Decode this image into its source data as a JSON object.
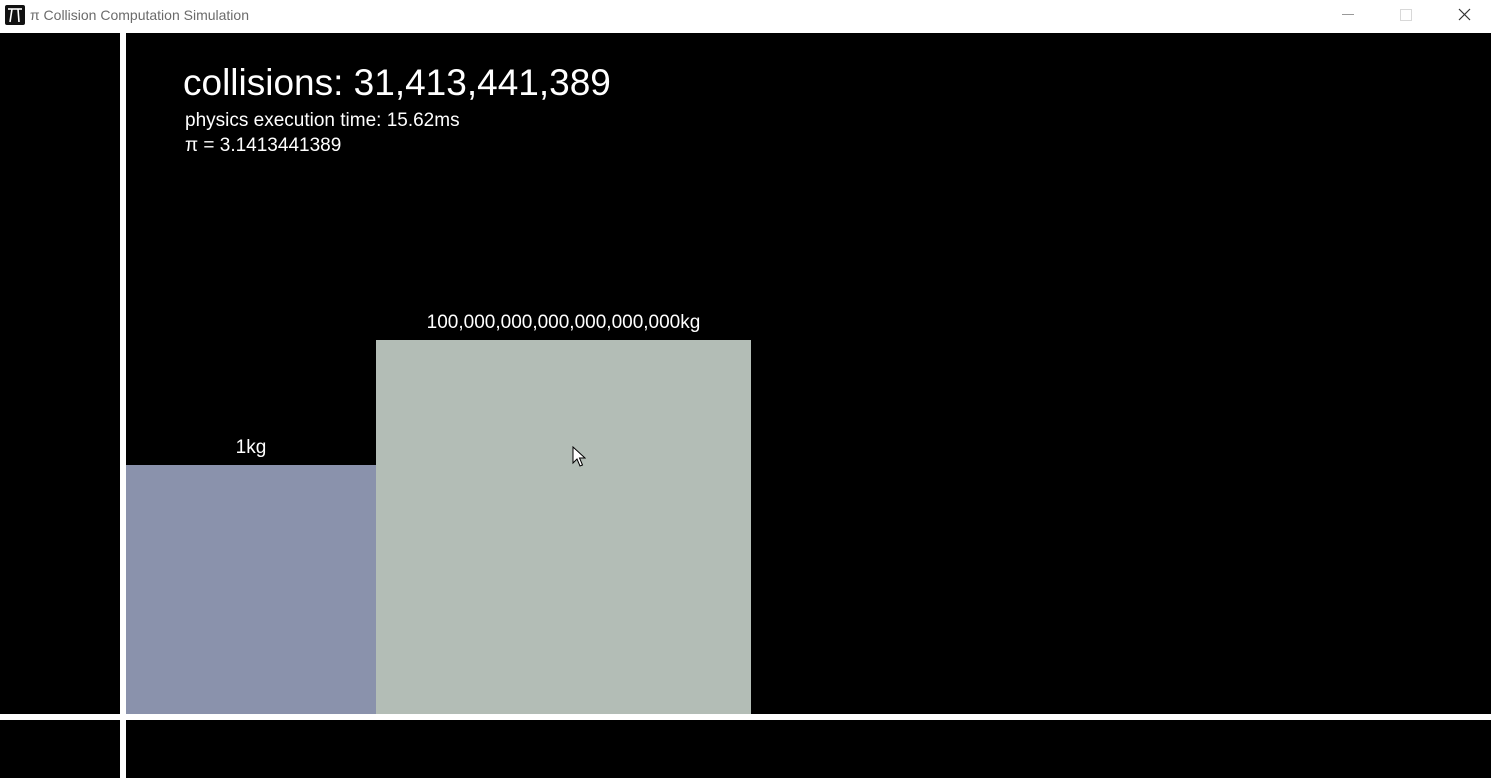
{
  "window": {
    "title": "π Collision Computation Simulation",
    "icon": "app-pi-icon"
  },
  "controls": {
    "minimize_icon": "minimize-icon",
    "maximize_icon": "maximize-icon",
    "close_icon": "close-icon"
  },
  "stats": {
    "collisions": "collisions: 31,413,441,389",
    "execution_time": "physics execution time: 15.62ms",
    "pi": "π = 3.1413441389"
  },
  "blocks": {
    "small": {
      "label": "1kg",
      "color": "#8a92ac"
    },
    "large": {
      "label": "100,000,000,000,000,000,000kg",
      "color": "#b3bdb6"
    }
  },
  "colors": {
    "background": "#000000",
    "wall": "#ffffff",
    "text": "#ffffff"
  }
}
